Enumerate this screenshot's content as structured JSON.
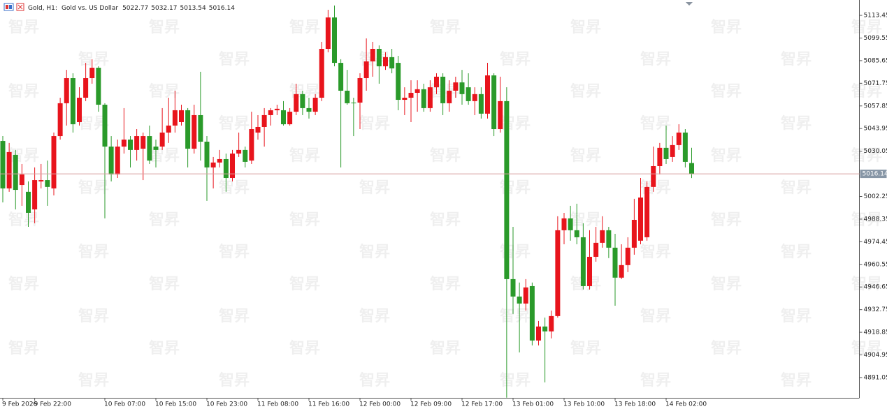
{
  "chart_data": {
    "type": "candlestick",
    "symbol": "Gold, H1:",
    "description": "Gold vs. US Dollar",
    "watermark": "智昇",
    "up_color": "#e8141c",
    "down_color": "#2a9a2a",
    "price_line_color": "#d9a0a0",
    "ylim": [
      4878.6,
      5122.9
    ],
    "yticks": [
      5113.45,
      5099.55,
      5085.65,
      5071.75,
      5057.85,
      5043.95,
      5030.05,
      5002.25,
      4988.35,
      4974.45,
      4960.55,
      4946.65,
      4932.75,
      4918.85,
      4904.95,
      4891.05
    ],
    "categories": [
      "9 Feb 2026",
      null,
      null,
      null,
      null,
      "9 Feb 22:00",
      null,
      null,
      null,
      null,
      null,
      null,
      null,
      null,
      null,
      null,
      "10 Feb 07:00",
      null,
      null,
      null,
      null,
      null,
      null,
      null,
      "10 Feb 15:00",
      null,
      null,
      null,
      null,
      null,
      null,
      null,
      "10 Feb 23:00",
      null,
      null,
      null,
      null,
      null,
      null,
      null,
      "11 Feb 08:00",
      null,
      null,
      null,
      null,
      null,
      null,
      null,
      "11 Feb 16:00",
      null,
      null,
      null,
      null,
      null,
      null,
      null,
      "12 Feb 00:00",
      null,
      null,
      null,
      null,
      null,
      null,
      null,
      "12 Feb 09:00",
      null,
      null,
      null,
      null,
      null,
      null,
      null,
      "12 Feb 17:00",
      null,
      null,
      null,
      null,
      null,
      null,
      null,
      "13 Feb 01:00",
      null,
      null,
      null,
      null,
      null,
      null,
      null,
      "13 Feb 10:00",
      null,
      null,
      null,
      null,
      null,
      null,
      null,
      "13 Feb 18:00",
      null,
      null,
      null,
      null,
      null,
      null,
      null,
      "14 Feb 02:00",
      null,
      null,
      null,
      null
    ],
    "open": [
      5036.3,
      5007.2,
      5027.8,
      5009.3,
      5005.1,
      4994.3,
      5011.5,
      5012.3,
      5007.2,
      5039.3,
      5059.5,
      5074.9,
      5047.9,
      5062.9,
      5074.9,
      5081.3,
      5058.6,
      5032.9,
      5015.8,
      5032.9,
      5037.2,
      5030.8,
      5031.6,
      5039.3,
      5032.9,
      5032.9,
      5041.5,
      5045.8,
      5047.9,
      5055.2,
      5031.6,
      5052.2,
      5035.9,
      5020.1,
      5023.1,
      5025.2,
      5013.6,
      5028.6,
      5030.8,
      5024.3,
      5041.5,
      5044.9,
      5052.2,
      5055.2,
      5055.2,
      5046.6,
      5054.3,
      5065.1,
      5056.5,
      5054.3,
      5062.9,
      5092.9,
      5112.2,
      5084.3,
      5067.2,
      5059.9,
      5059.9,
      5074.9,
      5085.2,
      5092.9,
      5082.2,
      5087.8,
      5084.3,
      5061.6,
      5062.9,
      5065.9,
      5068.1,
      5056.5,
      5069.3,
      5075.8,
      5059.5,
      5067.2,
      5072.3,
      5069.3,
      5060.8,
      5065.1,
      5053.1,
      5076.6,
      5043.6,
      5060.8,
      4951.5,
      4940.8,
      4936.5,
      4947.2,
      4913.8,
      4922.4,
      4919.4,
      4928.8,
      4981.5,
      4988.8,
      4981.5,
      4977.2,
      4947.2,
      4965.2,
      4973.8,
      4981.5,
      4970.8,
      4952.4,
      4960.1,
      4970.8,
      4975.1,
      4977.2,
      5008.1,
      5020.9,
      5032.1,
      5026.5,
      5033.8,
      5041.5,
      5022.77
    ],
    "high": [
      5039.3,
      5035.1,
      5030.8,
      5022.2,
      5011.5,
      5020.1,
      5022.2,
      5024.3,
      5041.5,
      5062.9,
      5080.0,
      5077.9,
      5069.3,
      5084.3,
      5086.5,
      5082.2,
      5059.5,
      5039.3,
      5037.2,
      5056.5,
      5039.3,
      5043.6,
      5041.5,
      5045.8,
      5037.2,
      5056.5,
      5062.9,
      5067.2,
      5058.6,
      5056.5,
      5058.6,
      5078.8,
      5039.3,
      5026.5,
      5030.8,
      5028.6,
      5030.8,
      5041.5,
      5032.9,
      5054.3,
      5052.2,
      5056.5,
      5056.5,
      5058.6,
      5060.8,
      5056.5,
      5071.5,
      5067.2,
      5062.9,
      5065.1,
      5097.2,
      5116.9,
      5119.5,
      5086.5,
      5080.0,
      5062.9,
      5077.9,
      5099.3,
      5097.2,
      5095.0,
      5090.8,
      5092.9,
      5088.6,
      5069.3,
      5073.6,
      5073.6,
      5071.5,
      5073.6,
      5077.9,
      5077.9,
      5073.6,
      5075.8,
      5080.0,
      5077.9,
      5069.3,
      5069.3,
      5084.3,
      5077.9,
      5075.8,
      5069.3,
      4983.6,
      4949.4,
      4951.5,
      4949.4,
      4925.8,
      4927.9,
      4932.2,
      4990.1,
      4992.2,
      4996.5,
      4997.8,
      4985.8,
      4981.5,
      4983.6,
      4990.1,
      4983.6,
      4979.3,
      4972.9,
      4977.2,
      5000.8,
      5013.6,
      5011.5,
      5032.9,
      5035.1,
      5045.8,
      5039.3,
      5046.6,
      5043.6,
      5032.17
    ],
    "low": [
      4998.6,
      5005.1,
      4994.3,
      4996.5,
      4983.6,
      4985.8,
      5007.2,
      4996.5,
      5002.9,
      5037.2,
      5045.8,
      5041.5,
      5045.8,
      5060.8,
      5071.5,
      5054.3,
      4988.8,
      5011.5,
      5013.6,
      5028.6,
      5020.1,
      5024.3,
      5012.3,
      5022.2,
      5020.1,
      5030.8,
      5035.1,
      5041.5,
      5045.8,
      5020.1,
      5028.6,
      5024.3,
      4999.5,
      5007.2,
      5020.1,
      5005.1,
      5011.5,
      5026.5,
      5020.1,
      5022.2,
      5037.2,
      5032.9,
      5045.8,
      5052.2,
      5045.8,
      5045.8,
      5052.2,
      5052.2,
      5050.1,
      5052.2,
      5060.8,
      5090.8,
      5082.2,
      5020.1,
      5058.6,
      5039.3,
      5043.6,
      5067.2,
      5075.8,
      5071.5,
      5080.0,
      5077.9,
      5055.2,
      5052.2,
      5047.9,
      5054.3,
      5054.3,
      5054.3,
      5065.1,
      5052.2,
      5054.3,
      5062.9,
      5058.6,
      5058.6,
      5052.2,
      5050.1,
      5050.1,
      5039.3,
      5041.5,
      4878.7,
      4930.1,
      4906.5,
      4932.2,
      4910.8,
      4910.8,
      4888.1,
      4915.1,
      4927.9,
      4972.9,
      4975.1,
      4972.9,
      4945.1,
      4945.1,
      4962.2,
      4970.8,
      4964.4,
      4935.2,
      4951.5,
      4955.8,
      4966.5,
      4972.9,
      4975.1,
      5005.1,
      5015.8,
      5022.2,
      5023.5,
      5030.8,
      5020.1,
      5013.54
    ],
    "close": [
      5007.2,
      5029.5,
      5006.3,
      5015.8,
      4992.2,
      5012.3,
      5012.3,
      5008.1,
      5039.3,
      5059.5,
      5074.9,
      5046.6,
      5062.9,
      5074.9,
      5081.3,
      5058.6,
      5032.9,
      5015.8,
      5032.9,
      5037.2,
      5030.8,
      5039.3,
      5039.3,
      5024.3,
      5030.8,
      5041.5,
      5045.8,
      5055.2,
      5055.2,
      5031.6,
      5052.2,
      5035.9,
      5020.1,
      5023.1,
      5025.2,
      5013.6,
      5028.6,
      5030.8,
      5023.5,
      5043.6,
      5044.9,
      5052.2,
      5055.2,
      5056.1,
      5046.6,
      5054.3,
      5065.1,
      5056.5,
      5054.3,
      5062.9,
      5092.9,
      5112.2,
      5084.3,
      5067.2,
      5059.5,
      5059.5,
      5074.9,
      5085.2,
      5092.9,
      5082.2,
      5087.8,
      5080.9,
      5061.6,
      5062.9,
      5065.9,
      5068.1,
      5056.5,
      5069.3,
      5075.8,
      5059.5,
      5067.2,
      5072.3,
      5065.1,
      5060.8,
      5065.1,
      5053.1,
      5076.6,
      5043.6,
      5060.8,
      4951.5,
      4940.8,
      4936.5,
      4946.4,
      4913.8,
      4922.4,
      4919.4,
      4928.8,
      4981.5,
      4988.8,
      4981.5,
      4977.2,
      4947.2,
      4965.2,
      4973.8,
      4981.5,
      4970.8,
      4952.4,
      4960.1,
      4970.8,
      4987.9,
      5001.6,
      5008.1,
      5020.9,
      5032.1,
      5025.2,
      5033.8,
      5041.5,
      5023.5,
      5016.14
    ]
  }
}
